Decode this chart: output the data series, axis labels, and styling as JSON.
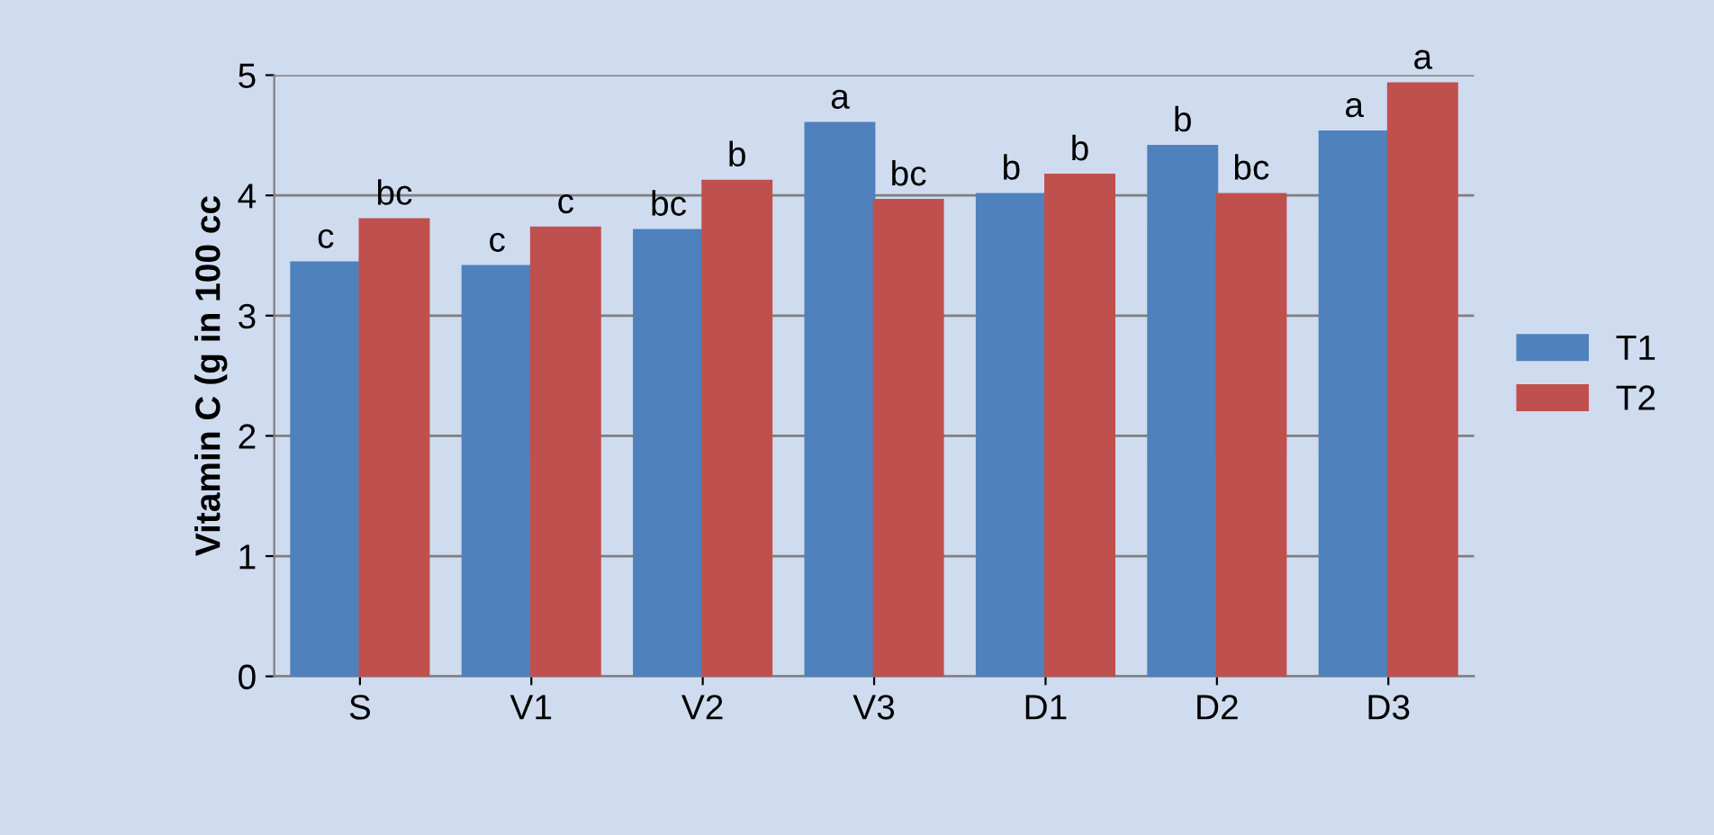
{
  "chart_data": {
    "type": "bar",
    "ylabel": "Vitamin C (g in 100 cc",
    "categories": [
      "S",
      "V1",
      "V2",
      "V3",
      "D1",
      "D2",
      "D3"
    ],
    "series": [
      {
        "name": "T1",
        "color": "#4f81bd",
        "values": [
          3.44,
          3.41,
          3.71,
          4.6,
          4.01,
          4.41,
          4.53
        ],
        "value_labels": [
          "c",
          "c",
          "bc",
          "a",
          "b",
          "b",
          "a"
        ]
      },
      {
        "name": "T2",
        "color": "#c0504d",
        "values": [
          3.8,
          3.73,
          4.12,
          3.96,
          4.17,
          4.01,
          4.93
        ],
        "value_labels": [
          "bc",
          "c",
          "b",
          "bc",
          "b",
          "bc",
          "a"
        ]
      }
    ],
    "ylim": [
      0,
      5
    ],
    "yticks": [
      0,
      1,
      2,
      3,
      4,
      5
    ],
    "grid": "y",
    "legend": "right"
  }
}
